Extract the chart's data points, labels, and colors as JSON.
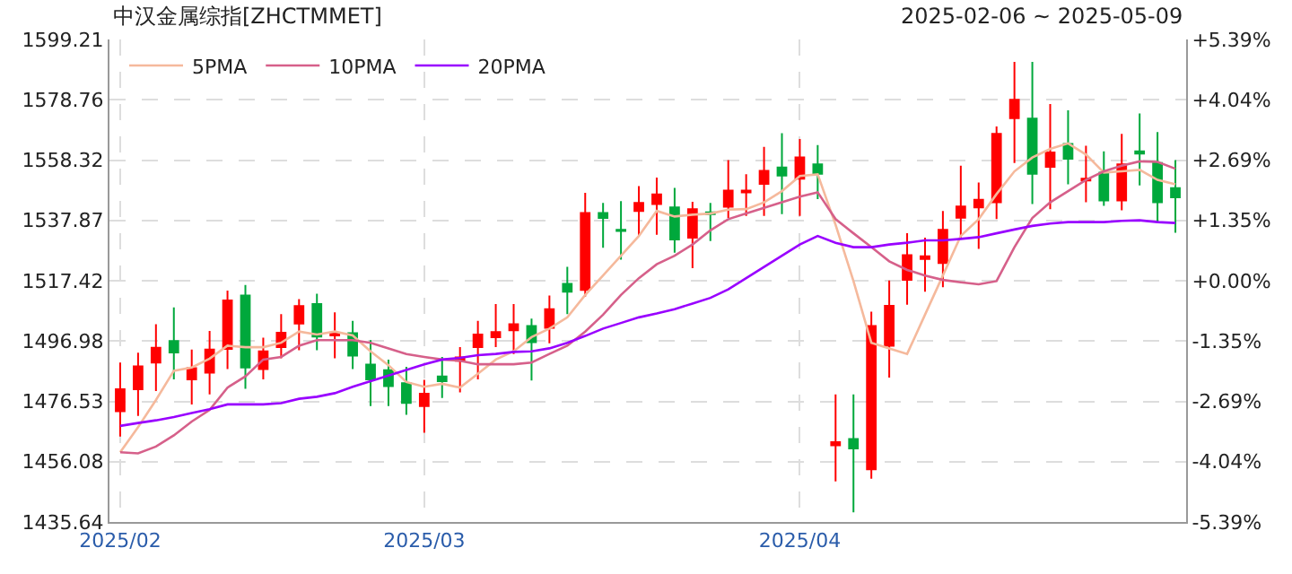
{
  "chart_data": {
    "type": "candlestick",
    "title": "中汉金属综指[ZHCTMMET]",
    "subtitle": "2025-02-06 ~ 2025-05-09",
    "categories": [
      "2025/02",
      null,
      null,
      null,
      null,
      null,
      null,
      null,
      null,
      null,
      null,
      null,
      null,
      null,
      null,
      null,
      null,
      "2025/03",
      null,
      null,
      null,
      null,
      null,
      null,
      null,
      null,
      null,
      null,
      null,
      null,
      null,
      null,
      null,
      null,
      null,
      null,
      null,
      null,
      "2025/04",
      null,
      null,
      null,
      null,
      null,
      null,
      null,
      null,
      null,
      null,
      null,
      null,
      null,
      null,
      null,
      null,
      null,
      null,
      null,
      null,
      null
    ],
    "ohlc": [
      [
        1473.2,
        1489.7,
        1464.6,
        1480.6
      ],
      [
        1480.6,
        1493.0,
        1471.6,
        1488.4
      ],
      [
        1489.7,
        1502.7,
        1480.0,
        1494.7
      ],
      [
        1497.0,
        1508.4,
        1484.0,
        1493.1
      ],
      [
        1484.0,
        1494.1,
        1475.5,
        1487.8
      ],
      [
        1486.3,
        1500.4,
        1478.9,
        1494.1
      ],
      [
        1494.3,
        1514.1,
        1487.5,
        1510.7
      ],
      [
        1512.4,
        1516.0,
        1480.8,
        1488.0
      ],
      [
        1487.5,
        1498.1,
        1484.0,
        1493.5
      ],
      [
        1494.9,
        1506.1,
        1491.1,
        1499.8
      ],
      [
        1502.9,
        1511.2,
        1493.9,
        1508.8
      ],
      [
        1509.5,
        1513.0,
        1493.9,
        1498.5
      ],
      [
        1498.9,
        1506.7,
        1491.1,
        1499.6
      ],
      [
        1499.6,
        1503.8,
        1487.5,
        1492.0
      ],
      [
        1489.0,
        1497.3,
        1474.9,
        1484.0
      ],
      [
        1487.1,
        1490.7,
        1474.9,
        1481.7
      ],
      [
        1482.7,
        1488.2,
        1472.0,
        1476.0
      ],
      [
        1474.9,
        1483.8,
        1465.9,
        1479.1
      ],
      [
        1485.0,
        1491.6,
        1477.7,
        1483.4
      ],
      [
        1490.3,
        1494.9,
        1479.6,
        1491.4
      ],
      [
        1494.9,
        1503.8,
        1484.0,
        1499.2
      ],
      [
        1498.3,
        1509.5,
        1494.9,
        1500.0
      ],
      [
        1500.6,
        1509.5,
        1492.6,
        1502.7
      ],
      [
        1502.1,
        1504.6,
        1483.6,
        1496.6
      ],
      [
        1501.5,
        1512.4,
        1496.2,
        1507.8
      ],
      [
        1516.4,
        1522.1,
        1506.1,
        1513.7
      ],
      [
        1514.3,
        1547.2,
        1512.0,
        1540.4
      ],
      [
        1540.4,
        1543.8,
        1528.6,
        1538.7
      ],
      [
        1534.7,
        1544.4,
        1524.6,
        1534.3
      ],
      [
        1541.1,
        1549.5,
        1532.6,
        1543.8
      ],
      [
        1543.4,
        1552.4,
        1533.0,
        1546.7
      ],
      [
        1542.3,
        1548.9,
        1526.9,
        1531.4
      ],
      [
        1532.0,
        1544.2,
        1521.7,
        1541.7
      ],
      [
        1540.6,
        1543.8,
        1530.9,
        1540.0
      ],
      [
        1542.5,
        1558.3,
        1538.7,
        1548.0
      ],
      [
        1547.4,
        1553.5,
        1539.4,
        1548.0
      ],
      [
        1550.3,
        1562.8,
        1539.4,
        1554.7
      ],
      [
        1555.8,
        1567.4,
        1540.0,
        1553.1
      ],
      [
        1552.0,
        1565.5,
        1539.4,
        1559.2
      ],
      [
        1556.9,
        1563.4,
        1545.1,
        1553.7
      ],
      [
        1461.6,
        1478.9,
        1449.4,
        1462.7
      ],
      [
        1463.8,
        1478.9,
        1438.9,
        1460.6
      ],
      [
        1453.5,
        1506.9,
        1450.3,
        1502.1
      ],
      [
        1495.4,
        1517.5,
        1484.6,
        1508.9
      ],
      [
        1517.7,
        1533.5,
        1509.3,
        1526.1
      ],
      [
        1524.8,
        1532.0,
        1513.7,
        1525.7
      ],
      [
        1523.4,
        1541.1,
        1515.2,
        1534.7
      ],
      [
        1538.8,
        1556.4,
        1532.0,
        1542.6
      ],
      [
        1542.3,
        1550.7,
        1528.2,
        1544.9
      ],
      [
        1544.0,
        1569.7,
        1538.3,
        1567.2
      ],
      [
        1572.5,
        1591.6,
        1557.3,
        1578.8
      ],
      [
        1572.4,
        1591.6,
        1543.4,
        1553.7
      ],
      [
        1556.0,
        1577.3,
        1541.7,
        1560.9
      ],
      [
        1563.8,
        1575.2,
        1550.1,
        1558.8
      ],
      [
        1551.4,
        1563.2,
        1544.0,
        1552.0
      ],
      [
        1554.1,
        1561.3,
        1542.8,
        1544.6
      ],
      [
        1544.6,
        1567.2,
        1541.3,
        1556.9
      ],
      [
        1561.3,
        1574.1,
        1549.7,
        1560.5
      ],
      [
        1557.3,
        1567.8,
        1537.5,
        1544.0
      ],
      [
        1548.8,
        1558.3,
        1533.7,
        1545.7
      ]
    ],
    "colors": [
      "#ff0000",
      "#ff0000",
      "#ff0000",
      "#00a83c",
      "#ff0000",
      "#ff0000",
      "#ff0000",
      "#00a83c",
      "#ff0000",
      "#ff0000",
      "#ff0000",
      "#00a83c",
      "#ff0000",
      "#00a83c",
      "#00a83c",
      "#00a83c",
      "#00a83c",
      "#ff0000",
      "#00a83c",
      "#ff0000",
      "#ff0000",
      "#ff0000",
      "#ff0000",
      "#00a83c",
      "#ff0000",
      "#00a83c",
      "#ff0000",
      "#00a83c",
      "#00a83c",
      "#ff0000",
      "#ff0000",
      "#00a83c",
      "#ff0000",
      "#00a83c",
      "#ff0000",
      "#ff0000",
      "#ff0000",
      "#00a83c",
      "#ff0000",
      "#00a83c",
      "#ff0000",
      "#00a83c",
      "#ff0000",
      "#ff0000",
      "#ff0000",
      "#ff0000",
      "#ff0000",
      "#ff0000",
      "#ff0000",
      "#ff0000",
      "#ff0000",
      "#00a83c",
      "#ff0000",
      "#00a83c",
      "#ff0000",
      "#00a83c",
      "#ff0000",
      "#00a83c",
      "#00a83c",
      "#00a83c"
    ],
    "series": [
      {
        "name": "5PMA",
        "type": "line",
        "color": "#f5b99c",
        "values": [
          1459.3,
          1467.8,
          1477.0,
          1486.9,
          1488.0,
          1491.0,
          1495.4,
          1494.9,
          1494.9,
          1496.4,
          1500.2,
          1499.2,
          1500.2,
          1498.9,
          1493.5,
          1488.8,
          1483.1,
          1481.5,
          1482.5,
          1481.2,
          1485.9,
          1490.7,
          1493.5,
          1498.3,
          1501.2,
          1505.0,
          1512.6,
          1519.2,
          1525.9,
          1532.6,
          1541.1,
          1539.2,
          1539.8,
          1540.2,
          1541.5,
          1541.7,
          1544.0,
          1547.8,
          1552.9,
          1553.5,
          1536.4,
          1517.3,
          1496.4,
          1494.5,
          1492.6,
          1505.9,
          1519.2,
          1532.6,
          1538.3,
          1546.8,
          1554.5,
          1559.2,
          1562.1,
          1564.0,
          1560.2,
          1554.1,
          1554.5,
          1555.0,
          1551.6,
          1550.1
        ]
      },
      {
        "name": "10PMA",
        "type": "line",
        "color": "#d6608a",
        "values": [
          1459.3,
          1458.9,
          1461.2,
          1465.0,
          1469.7,
          1473.6,
          1481.2,
          1485.0,
          1490.7,
          1491.6,
          1495.4,
          1497.3,
          1497.3,
          1497.3,
          1496.4,
          1494.5,
          1492.6,
          1491.6,
          1490.7,
          1490.3,
          1489.1,
          1489.1,
          1489.1,
          1489.7,
          1492.6,
          1495.4,
          1500.2,
          1505.9,
          1512.6,
          1518.3,
          1523.0,
          1525.9,
          1529.7,
          1534.5,
          1538.3,
          1540.2,
          1542.1,
          1544.0,
          1545.9,
          1547.4,
          1538.3,
          1533.5,
          1528.8,
          1524.0,
          1521.1,
          1519.2,
          1517.7,
          1516.9,
          1516.2,
          1517.3,
          1528.8,
          1538.7,
          1544.0,
          1547.8,
          1551.6,
          1554.5,
          1556.4,
          1557.9,
          1557.7,
          1555.4
        ]
      },
      {
        "name": "20PMA",
        "type": "line",
        "color": "#9900ff",
        "values": [
          1468.2,
          1469.2,
          1470.1,
          1471.2,
          1472.6,
          1473.9,
          1475.5,
          1475.5,
          1475.5,
          1475.9,
          1477.4,
          1478.1,
          1479.3,
          1481.5,
          1483.4,
          1485.3,
          1487.2,
          1489.1,
          1490.7,
          1491.3,
          1492.2,
          1492.6,
          1493.3,
          1493.5,
          1494.5,
          1496.4,
          1498.7,
          1501.2,
          1503.1,
          1505.0,
          1506.3,
          1507.8,
          1509.7,
          1511.6,
          1514.5,
          1518.3,
          1522.1,
          1525.9,
          1529.7,
          1532.6,
          1530.3,
          1528.8,
          1528.8,
          1529.7,
          1530.3,
          1531.1,
          1531.1,
          1531.6,
          1532.2,
          1533.5,
          1534.8,
          1536.0,
          1536.8,
          1537.3,
          1537.3,
          1537.3,
          1537.7,
          1537.9,
          1537.3,
          1537.0
        ]
      }
    ],
    "ylim": [
      1435.64,
      1599.21
    ],
    "yticks": [
      1435.64,
      1456.08,
      1476.53,
      1496.98,
      1517.42,
      1537.87,
      1558.32,
      1578.76,
      1599.21
    ],
    "y2lim": [
      -5.39,
      5.39
    ],
    "y2ticks": [
      {
        "value": -5.39,
        "label": "-5.39%"
      },
      {
        "value": -4.04,
        "label": "-4.04%"
      },
      {
        "value": -2.69,
        "label": "-2.69%"
      },
      {
        "value": -1.35,
        "label": "-1.35%"
      },
      {
        "value": 0,
        "label": "+0.00%"
      },
      {
        "value": 1.35,
        "label": "+1.35%"
      },
      {
        "value": 2.69,
        "label": "+2.69%"
      },
      {
        "value": 4.04,
        "label": "+4.04%"
      },
      {
        "value": 5.39,
        "label": "+5.39%"
      }
    ],
    "grid": true,
    "legend": "top left"
  }
}
